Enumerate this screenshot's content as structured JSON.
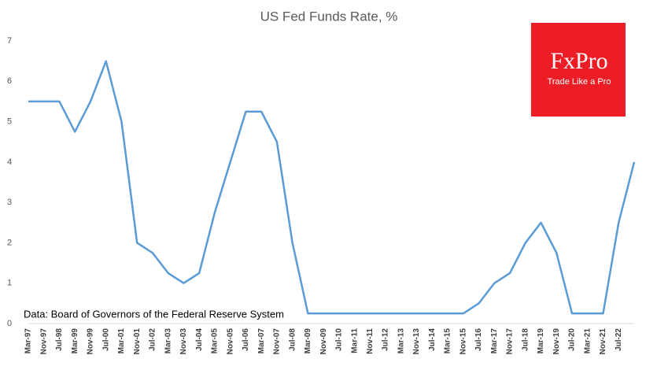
{
  "chart_data": {
    "type": "line",
    "title": "US Fed Funds Rate, %",
    "annotation": "Data: Board of Governors of the Federal Reserve System",
    "logo": {
      "brand": "FxPro",
      "tagline": "Trade Like a Pro"
    },
    "categories": [
      "Mar-97",
      "Nov-97",
      "Jul-98",
      "Mar-99",
      "Nov-99",
      "Jul-00",
      "Mar-01",
      "Nov-01",
      "Jul-02",
      "Mar-03",
      "Nov-03",
      "Jul-04",
      "Mar-05",
      "Nov-05",
      "Jul-06",
      "Mar-07",
      "Nov-07",
      "Jul-08",
      "Mar-09",
      "Nov-09",
      "Jul-10",
      "Mar-11",
      "Nov-11",
      "Jul-12",
      "Mar-13",
      "Nov-13",
      "Jul-14",
      "Mar-15",
      "Nov-15",
      "Jul-16",
      "Mar-17",
      "Nov-17",
      "Jul-18",
      "Mar-19",
      "Nov-19",
      "Jul-20",
      "Mar-21",
      "Nov-21",
      "Jul-22",
      null
    ],
    "series": [
      {
        "name": "Fed Funds Rate",
        "color": "#5b9bd5",
        "values": [
          5.5,
          5.5,
          5.5,
          4.75,
          5.5,
          6.5,
          5.0,
          2.0,
          1.75,
          1.25,
          1.0,
          1.25,
          2.75,
          4.0,
          5.25,
          5.25,
          4.5,
          2.0,
          0.25,
          0.25,
          0.25,
          0.25,
          0.25,
          0.25,
          0.25,
          0.25,
          0.25,
          0.25,
          0.25,
          0.5,
          1.0,
          1.25,
          2.0,
          2.5,
          1.75,
          0.25,
          0.25,
          0.25,
          2.5,
          4.0
        ]
      }
    ],
    "ylim": [
      0,
      7
    ],
    "yticks": [
      0,
      1,
      2,
      3,
      4,
      5,
      6,
      7
    ],
    "grid": false
  }
}
